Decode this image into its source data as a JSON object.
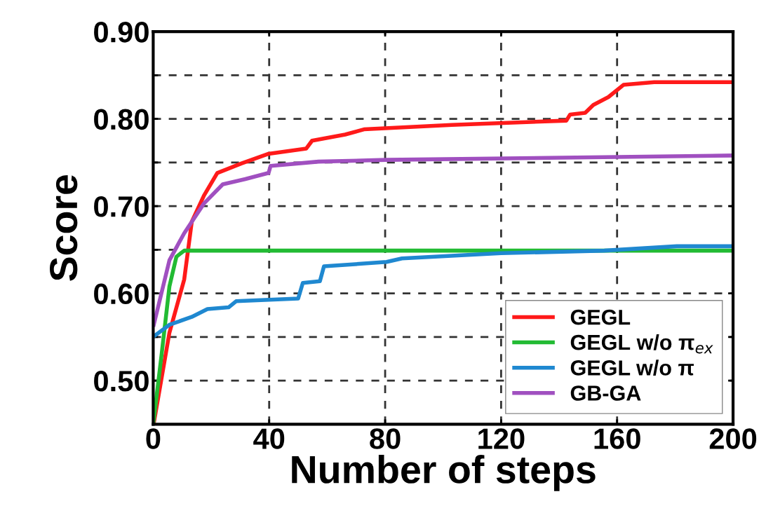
{
  "chart_data": {
    "type": "line",
    "xlabel": "Number of steps",
    "ylabel": "Score",
    "xlim": [
      0,
      200
    ],
    "xticks": [
      0,
      40,
      80,
      120,
      160,
      200
    ],
    "ylim": [
      0.45,
      0.9
    ],
    "yticks": [
      {
        "value": 0.5,
        "label": "0.50"
      },
      {
        "value": 0.55,
        "label": null
      },
      {
        "value": 0.6,
        "label": "0.60"
      },
      {
        "value": 0.65,
        "label": null
      },
      {
        "value": 0.7,
        "label": "0.70"
      },
      {
        "value": 0.75,
        "label": null
      },
      {
        "value": 0.8,
        "label": "0.80"
      },
      {
        "value": 0.85,
        "label": null
      },
      {
        "value": 0.9,
        "label": "0.90"
      }
    ],
    "grid": true,
    "legend": "bottom right",
    "line_style": "solid",
    "marker": "none",
    "series": [
      {
        "name": "GEGL",
        "color": "#ff1a1a",
        "x": [
          0,
          0.2,
          5.6,
          10.7,
          13.3,
          17.5,
          22.1,
          30.5,
          39.8,
          52.8,
          54.8,
          66.2,
          72.7,
          103,
          142.5,
          143.8,
          149,
          151.8,
          157,
          162.2,
          172.8,
          200
        ],
        "values": [
          0.45,
          0.451,
          0.555,
          0.616,
          0.682,
          0.712,
          0.738,
          0.749,
          0.76,
          0.766,
          0.775,
          0.782,
          0.788,
          0.793,
          0.798,
          0.805,
          0.807,
          0.816,
          0.825,
          0.839,
          0.842,
          0.842
        ]
      },
      {
        "name": "GEGL w/o π$_{ex}$",
        "color": "#22bb33",
        "x": [
          0,
          2.9,
          5.6,
          8,
          10.7,
          200
        ],
        "values": [
          0.45,
          0.53,
          0.608,
          0.642,
          0.649,
          0.649
        ]
      },
      {
        "name": "GEGL w/o π",
        "color": "#1f88d0",
        "x": [
          0.3,
          5.6,
          13.3,
          18.7,
          26,
          28.6,
          50,
          51.6,
          57.5,
          58.9,
          80.5,
          85.8,
          120,
          155.6,
          180.6,
          200
        ],
        "values": [
          0.551,
          0.564,
          0.573,
          0.582,
          0.584,
          0.591,
          0.594,
          0.612,
          0.614,
          0.631,
          0.636,
          0.64,
          0.646,
          0.649,
          0.654,
          0.654
        ]
      },
      {
        "name": "GB-GA",
        "color": "#a050c0",
        "x": [
          0.2,
          5.6,
          10.7,
          17.5,
          24,
          31.8,
          39.8,
          40.5,
          57,
          80.5,
          200
        ],
        "values": [
          0.564,
          0.638,
          0.669,
          0.703,
          0.725,
          0.731,
          0.738,
          0.746,
          0.751,
          0.753,
          0.758
        ]
      }
    ]
  }
}
